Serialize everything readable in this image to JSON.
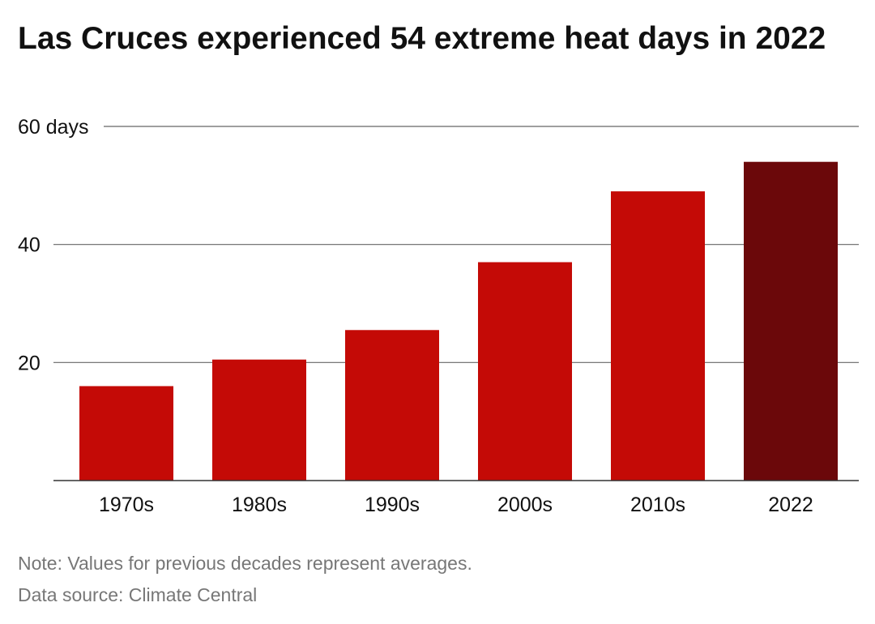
{
  "chart_data": {
    "type": "bar",
    "title": "Las Cruces experienced 54 extreme heat days in 2022",
    "categories": [
      "1970s",
      "1980s",
      "1990s",
      "2000s",
      "2010s",
      "2022"
    ],
    "values": [
      16,
      20.5,
      25.5,
      37,
      49,
      54
    ],
    "ylim": [
      0,
      60
    ],
    "y_ticks": [
      {
        "value": 20,
        "label": "20"
      },
      {
        "value": 40,
        "label": "40"
      },
      {
        "value": 60,
        "label": "60 days"
      }
    ],
    "grid": true,
    "colors": {
      "bar": "#c40a06",
      "highlight": "#6b080a",
      "grid": "#333333"
    },
    "highlight_category": "2022"
  },
  "footer": {
    "note": "Note: Values for previous decades represent averages.",
    "source": "Data source: Climate Central"
  }
}
